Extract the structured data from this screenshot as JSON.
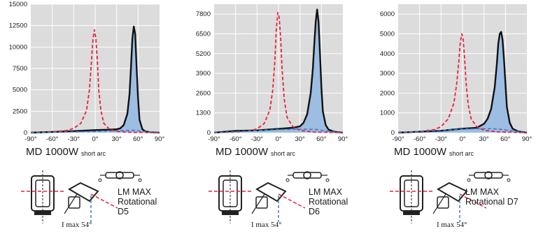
{
  "colors": {
    "plot_bg": "#dcdcdc",
    "solid_line": "#111111",
    "fill": "#9dbde3",
    "dashed_red": "#e8203a",
    "dashed_blue": "#3d7cc9",
    "grid": "#ffffff"
  },
  "panels": [
    {
      "lamp": "MD 1000W",
      "lamp_sub": "short arc",
      "label_line1": "LM MAX",
      "label_line2": "Rotational D5",
      "imax": "I max 54°"
    },
    {
      "lamp": "MD 1000W",
      "lamp_sub": "short arc",
      "label_line1": "LM MAX",
      "label_line2": "Rotational D6",
      "imax": "I max 54°"
    },
    {
      "lamp": "MD 1000W",
      "lamp_sub": "short arc",
      "label_line1": "LM MAX",
      "label_line2": "Rotational D7",
      "imax": "I max 54°"
    }
  ],
  "chart_data": [
    {
      "type": "line",
      "x_ticks": [
        "-90°",
        "-60°",
        "-30°",
        "0°",
        "30°",
        "60°",
        "90°"
      ],
      "y_ticks": [
        0,
        2500,
        5000,
        7500,
        10000,
        12500,
        15000
      ],
      "xlim": [
        -90,
        90
      ],
      "ylim": [
        0,
        15000
      ],
      "grid": true,
      "series": [
        {
          "style": "solid-filled",
          "x": [
            -90,
            -60,
            -30,
            0,
            20,
            30,
            35,
            40,
            45,
            48,
            50,
            52,
            54,
            56,
            58,
            60,
            62,
            66,
            70,
            78,
            90
          ],
          "y": [
            0,
            80,
            180,
            300,
            350,
            400,
            500,
            900,
            2200,
            4500,
            7500,
            11000,
            12400,
            11500,
            7500,
            4000,
            1500,
            400,
            150,
            50,
            0
          ]
        },
        {
          "style": "dashed-red",
          "x": [
            -90,
            -60,
            -40,
            -30,
            -20,
            -12,
            -8,
            -5,
            -3,
            -1,
            1,
            3,
            5,
            8,
            12,
            20,
            30,
            50,
            90
          ],
          "y": [
            0,
            80,
            250,
            500,
            1100,
            2600,
            5000,
            8500,
            11000,
            12000,
            11000,
            8500,
            5000,
            2600,
            1100,
            400,
            150,
            40,
            0
          ]
        },
        {
          "style": "dashed-blue",
          "x": [
            -90,
            -60,
            -30,
            0,
            20,
            40,
            54,
            70,
            90
          ],
          "y": [
            0,
            40,
            100,
            150,
            200,
            250,
            280,
            120,
            0
          ]
        }
      ]
    },
    {
      "type": "line",
      "x_ticks": [
        "-90°",
        "-60°",
        "-30°",
        "0°",
        "30°",
        "60°",
        "90°"
      ],
      "y_ticks": [
        0,
        1300,
        2600,
        3900,
        5200,
        6500,
        7800
      ],
      "xlim": [
        -90,
        90
      ],
      "ylim": [
        0,
        8450
      ],
      "grid": true,
      "series": [
        {
          "style": "solid-filled",
          "x": [
            -90,
            -60,
            -30,
            0,
            20,
            30,
            35,
            40,
            45,
            48,
            50,
            52,
            54,
            56,
            58,
            60,
            62,
            66,
            70,
            78,
            90
          ],
          "y": [
            0,
            120,
            150,
            250,
            320,
            420,
            650,
            1200,
            2600,
            4200,
            5800,
            7300,
            8100,
            7300,
            5200,
            3000,
            1400,
            500,
            200,
            60,
            0
          ]
        },
        {
          "style": "dashed-red",
          "x": [
            -90,
            -60,
            -40,
            -30,
            -20,
            -12,
            -8,
            -5,
            -3,
            -1,
            1,
            3,
            5,
            8,
            12,
            20,
            30,
            50,
            90
          ],
          "y": [
            0,
            40,
            120,
            250,
            600,
            1500,
            2800,
            4800,
            6800,
            7900,
            7600,
            6200,
            4200,
            2200,
            1000,
            400,
            150,
            40,
            0
          ]
        },
        {
          "style": "dashed-blue",
          "x": [
            -90,
            -60,
            -30,
            0,
            20,
            40,
            54,
            70,
            90
          ],
          "y": [
            0,
            60,
            140,
            200,
            220,
            230,
            200,
            90,
            0
          ]
        }
      ]
    },
    {
      "type": "line",
      "x_ticks": [
        "-90°",
        "-60°",
        "-30°",
        "0°",
        "30°",
        "60°",
        "90°"
      ],
      "y_ticks": [
        0,
        1000,
        2000,
        3000,
        4000,
        5000,
        6000
      ],
      "xlim": [
        -90,
        90
      ],
      "ylim": [
        0,
        6500
      ],
      "grid": true,
      "series": [
        {
          "style": "solid-filled",
          "x": [
            -90,
            -60,
            -30,
            0,
            20,
            30,
            35,
            40,
            45,
            48,
            50,
            52,
            54,
            56,
            58,
            60,
            62,
            66,
            70,
            78,
            90
          ],
          "y": [
            0,
            50,
            100,
            200,
            250,
            450,
            700,
            1200,
            2300,
            3500,
            4500,
            5000,
            5100,
            4700,
            3700,
            2500,
            1300,
            500,
            200,
            60,
            0
          ]
        },
        {
          "style": "dashed-red",
          "x": [
            -90,
            -60,
            -40,
            -30,
            -20,
            -12,
            -8,
            -5,
            -3,
            -1,
            1,
            3,
            5,
            8,
            12,
            20,
            30,
            50,
            90
          ],
          "y": [
            0,
            60,
            150,
            300,
            700,
            1500,
            2500,
            3700,
            4600,
            5000,
            4700,
            3700,
            2500,
            1400,
            700,
            300,
            120,
            40,
            0
          ]
        },
        {
          "style": "dashed-blue",
          "x": [
            -90,
            -60,
            -30,
            0,
            20,
            40,
            54,
            70,
            90
          ],
          "y": [
            0,
            60,
            120,
            180,
            200,
            200,
            170,
            80,
            0
          ]
        }
      ]
    }
  ]
}
